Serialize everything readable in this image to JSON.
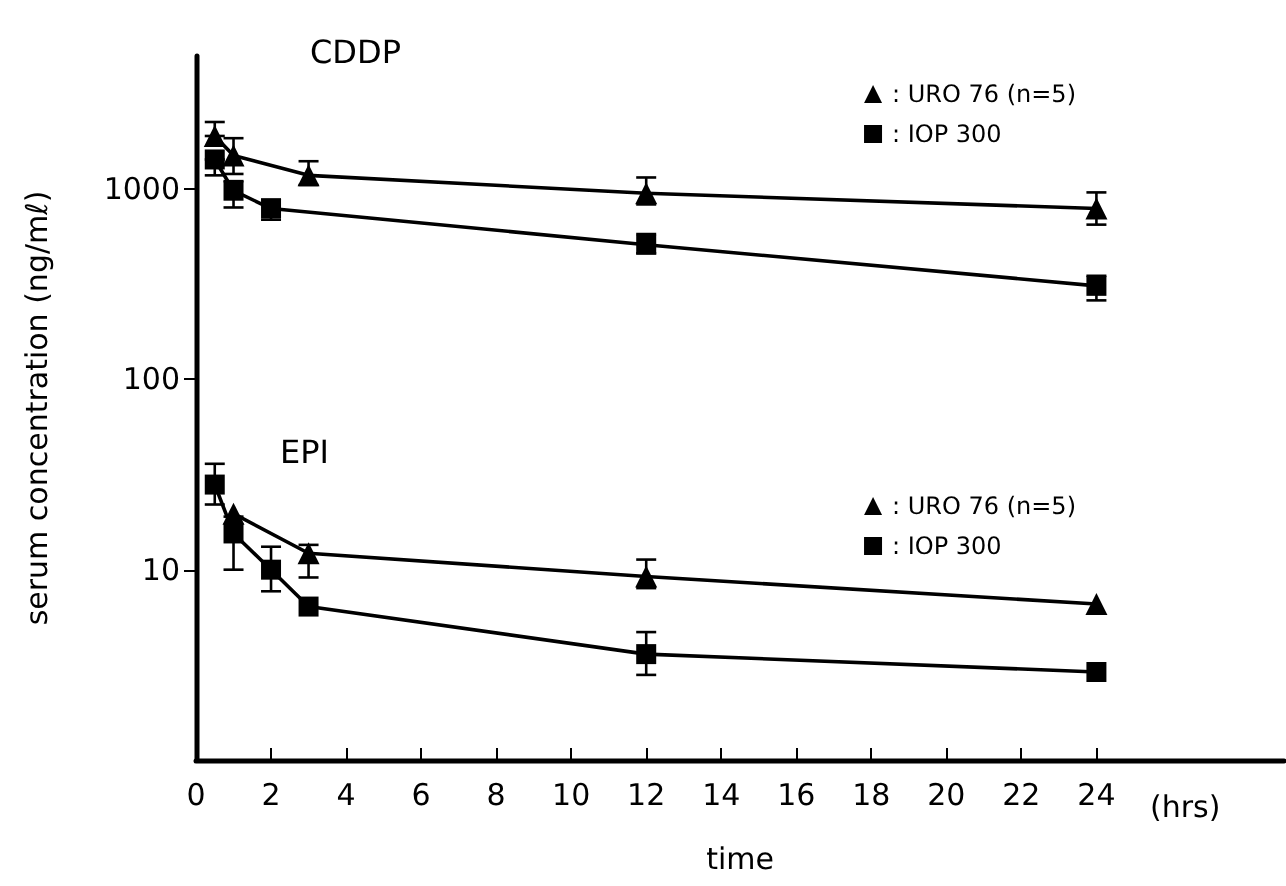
{
  "chart_data": {
    "type": "line",
    "xlabel": "time",
    "ylabel": "serum concentration (ng/mℓ)",
    "annotations": [
      "CDDP",
      "EPI",
      "(hrs)"
    ],
    "xlim": [
      0,
      29
    ],
    "xticks": [
      0,
      2,
      4,
      6,
      8,
      10,
      12,
      14,
      16,
      18,
      20,
      22,
      24
    ],
    "ylim": [
      1,
      5000
    ],
    "yticks": [
      {
        "value": 10,
        "label": "10"
      },
      {
        "value": 100,
        "label": "100"
      },
      {
        "value": 1000,
        "label": "1000"
      }
    ],
    "log": "y",
    "grid": false,
    "legend": "top right",
    "line_style": "solid",
    "series": [
      {
        "name": ": URO 76 (n=5)",
        "color": "#000000",
        "marker": "triangle",
        "x": [
          0.5,
          1,
          3,
          12,
          24
        ],
        "values": [
          1900,
          1500,
          1180,
          950,
          790
        ],
        "errors": [
          [
            1900,
            2250
          ],
          [
            1200,
            1850
          ],
          [
            1050,
            1400
          ],
          [
            830,
            1150
          ],
          [
            650,
            960
          ]
        ]
      },
      {
        "name": ": IOP 300",
        "color": "#000000",
        "marker": "square",
        "x": [
          0.5,
          1,
          2,
          12,
          24
        ],
        "values": [
          1430,
          980,
          790,
          510,
          310
        ],
        "errors": [
          [
            1180,
            1430
          ],
          [
            800,
            1100
          ],
          [
            690,
            880
          ],
          [
            460,
            580
          ],
          [
            260,
            350
          ]
        ]
      },
      {
        "name": ": URO 76 (n=5)",
        "color": "#000000",
        "marker": "triangle",
        "x": [
          1,
          3,
          12,
          24
        ],
        "values": [
          19.7,
          12.2,
          9.2,
          6.6
        ],
        "errors": [
          null,
          [
            9.1,
            13.5
          ],
          [
            8.0,
            11.3
          ],
          null
        ]
      },
      {
        "name": ": IOP 300",
        "color": "#000000",
        "marker": "square",
        "x": [
          0.5,
          1,
          2,
          3,
          12,
          24
        ],
        "values": [
          28,
          15.5,
          10,
          6.4,
          3.6,
          2.9
        ],
        "errors": [
          [
            22,
            36
          ],
          [
            10,
            19
          ],
          [
            7.7,
            13.2
          ],
          null,
          [
            2.8,
            4.7
          ],
          null
        ]
      }
    ]
  }
}
